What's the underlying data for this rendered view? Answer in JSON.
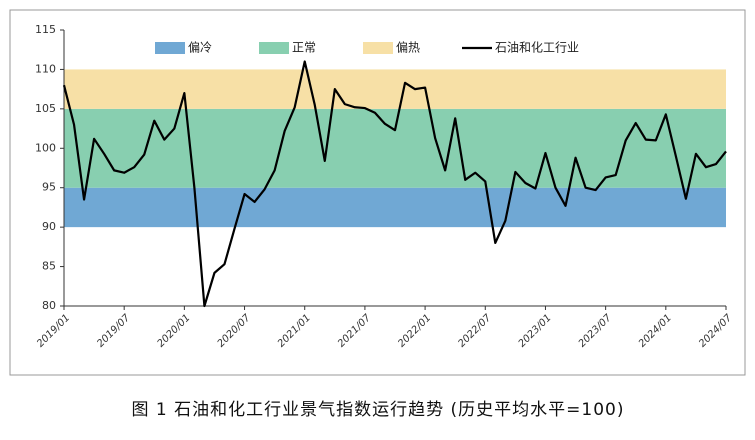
{
  "chart_data": {
    "type": "line",
    "caption": "图 1 石油和化工行业景气指数运行趋势 (历史平均水平=100)",
    "categories": [
      "2019/01",
      null,
      null,
      null,
      null,
      null,
      "2019/07",
      null,
      null,
      null,
      null,
      null,
      "2020/01",
      null,
      null,
      null,
      null,
      null,
      "2020/07",
      null,
      null,
      null,
      null,
      null,
      "2021/01",
      null,
      null,
      null,
      null,
      null,
      "2021/07",
      null,
      null,
      null,
      null,
      null,
      "2022/01",
      null,
      null,
      null,
      null,
      null,
      "2022/07",
      null,
      null,
      null,
      null,
      null,
      "2023/01",
      null,
      null,
      null,
      null,
      null,
      "2023/07",
      null,
      null,
      null,
      null,
      null,
      "2024/01",
      null,
      null,
      null,
      null,
      null,
      "2024/07"
    ],
    "series": [
      {
        "name": "石油和化工行业",
        "color": "#000000",
        "values": [
          108,
          103,
          93.5,
          101.2,
          99.3,
          97.2,
          96.9,
          97.6,
          99.2,
          103.5,
          101.1,
          102.5,
          107,
          95,
          80,
          84.2,
          85.3,
          89.8,
          94.2,
          93.2,
          94.8,
          97.2,
          102.2,
          105.2,
          111,
          105.5,
          98.4,
          107.5,
          105.6,
          105.2,
          105.1,
          104.5,
          103.1,
          102.3,
          108.3,
          107.5,
          107.7,
          101.3,
          97.2,
          103.8,
          96,
          96.9,
          95.8,
          88,
          90.8,
          97,
          95.6,
          94.9,
          99.4,
          95,
          92.7,
          98.8,
          95,
          94.7,
          96.3,
          96.6,
          101,
          103.2,
          101.1,
          101,
          104.3,
          99,
          93.6,
          99.3,
          97.6,
          98,
          99.6
        ]
      }
    ],
    "bands": [
      {
        "name": "偏冷",
        "color": "#70a8d4",
        "range": [
          90,
          95
        ]
      },
      {
        "name": "正常",
        "color": "#88cfb0",
        "range": [
          95,
          105
        ]
      },
      {
        "name": "偏热",
        "color": "#f7e0a6",
        "range": [
          105,
          110
        ]
      }
    ],
    "ylim": [
      80,
      115
    ],
    "yticks": [
      80,
      85,
      90,
      95,
      100,
      105,
      110,
      115
    ],
    "grid": false
  }
}
